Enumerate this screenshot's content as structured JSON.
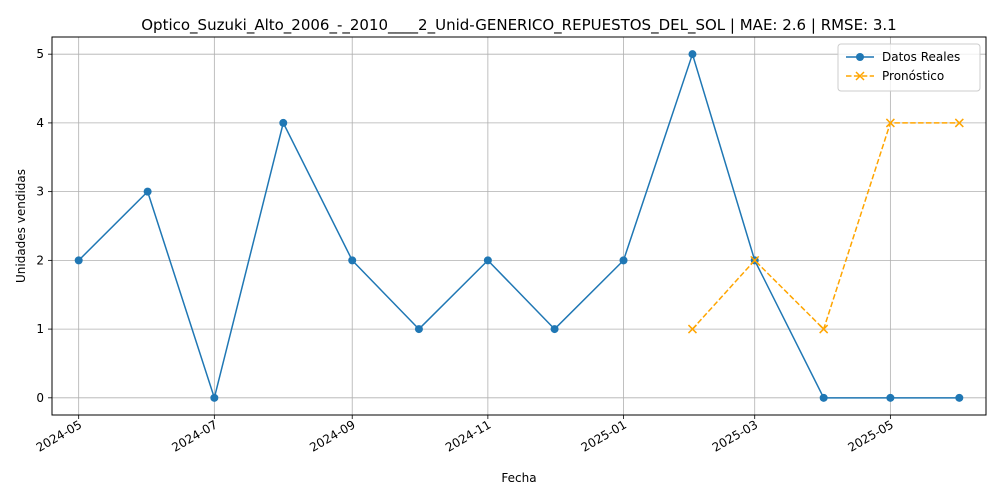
{
  "chart_data": {
    "type": "line",
    "title": "Optico_Suzuki_Alto_2006_-_2010____2_Unid-GENERICO_REPUESTOS_DEL_SOL | MAE: 2.6 | RMSE: 3.1",
    "xlabel": "Fecha",
    "ylabel": "Unidades vendidas",
    "x_ticks": [
      "2024-05",
      "2024-07",
      "2024-09",
      "2024-11",
      "2025-01",
      "2025-03",
      "2025-05"
    ],
    "y_ticks": [
      0,
      1,
      2,
      3,
      4,
      5
    ],
    "xlim": [
      "2024-04-19",
      "2025-06-13"
    ],
    "ylim": [
      -0.25,
      5.25
    ],
    "grid": true,
    "legend_position": "top-right",
    "series": [
      {
        "name": "Datos Reales",
        "color": "#1f77b4",
        "marker": "circle",
        "linestyle": "solid",
        "points": [
          {
            "x": "2024-05-01",
            "y": 2
          },
          {
            "x": "2024-06-01",
            "y": 3
          },
          {
            "x": "2024-07-01",
            "y": 0
          },
          {
            "x": "2024-08-01",
            "y": 4
          },
          {
            "x": "2024-09-01",
            "y": 2
          },
          {
            "x": "2024-10-01",
            "y": 1
          },
          {
            "x": "2024-11-01",
            "y": 2
          },
          {
            "x": "2024-12-01",
            "y": 1
          },
          {
            "x": "2025-01-01",
            "y": 2
          },
          {
            "x": "2025-02-01",
            "y": 5
          },
          {
            "x": "2025-03-01",
            "y": 2
          },
          {
            "x": "2025-04-01",
            "y": 0
          },
          {
            "x": "2025-05-01",
            "y": 0
          },
          {
            "x": "2025-06-01",
            "y": 0
          }
        ]
      },
      {
        "name": "Pronóstico",
        "color": "#ffa500",
        "marker": "x",
        "linestyle": "dashed",
        "points": [
          {
            "x": "2025-02-01",
            "y": 1
          },
          {
            "x": "2025-03-01",
            "y": 2
          },
          {
            "x": "2025-04-01",
            "y": 1
          },
          {
            "x": "2025-05-01",
            "y": 4
          },
          {
            "x": "2025-06-01",
            "y": 4
          }
        ]
      }
    ]
  }
}
